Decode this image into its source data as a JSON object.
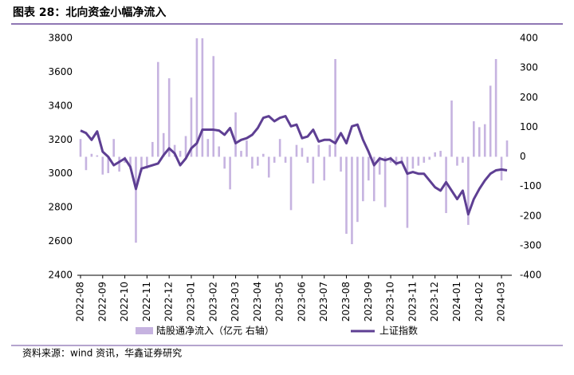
{
  "chart_data": {
    "type": "bar_line",
    "title": "图表 28：北向资金小幅净流入",
    "source": "资料来源：wind 资讯，华鑫证券研究",
    "categories": [
      "2022-08",
      null,
      null,
      null,
      "2022-09",
      null,
      null,
      null,
      "2022-10",
      null,
      null,
      null,
      "2022-11",
      null,
      null,
      null,
      "2022-12",
      null,
      null,
      null,
      "2023-01",
      null,
      null,
      null,
      "2023-02",
      null,
      null,
      null,
      "2023-03",
      null,
      null,
      null,
      "2023-04",
      null,
      null,
      null,
      "2023-05",
      null,
      null,
      null,
      "2023-06",
      null,
      null,
      null,
      "2023-07",
      null,
      null,
      null,
      "2023-08",
      null,
      null,
      null,
      "2023-09",
      null,
      null,
      null,
      "2023-10",
      null,
      null,
      null,
      "2023-11",
      null,
      null,
      null,
      "2023-12",
      null,
      null,
      null,
      "2024-01",
      null,
      null,
      null,
      "2024-02",
      null,
      null,
      null,
      "2024-03",
      null
    ],
    "series": [
      {
        "name": "陆股通净流入（亿元 右轴）",
        "type": "bar",
        "axis": "y2",
        "color": "#c6b3e0",
        "values": [
          60,
          -45,
          10,
          5,
          -60,
          -55,
          60,
          -50,
          -20,
          -40,
          -290,
          -50,
          -40,
          50,
          320,
          80,
          265,
          40,
          20,
          70,
          200,
          400,
          400,
          60,
          340,
          35,
          -40,
          -110,
          150,
          20,
          55,
          -40,
          -30,
          10,
          -70,
          -20,
          60,
          -20,
          -180,
          40,
          30,
          -20,
          -90,
          40,
          -80,
          40,
          330,
          -50,
          -260,
          -295,
          -220,
          -150,
          -80,
          -150,
          -60,
          -170,
          -20,
          -30,
          -20,
          -240,
          -40,
          -30,
          -20,
          -10,
          15,
          20,
          -190,
          190,
          -30,
          -20,
          -230,
          120,
          100,
          110,
          240,
          330,
          -80,
          55
        ]
      },
      {
        "name": "上证指数",
        "type": "line",
        "color": "#5e3f93",
        "values": [
          3255,
          3240,
          3200,
          3250,
          3130,
          3100,
          3050,
          3070,
          3090,
          3040,
          2910,
          3030,
          3040,
          3050,
          3060,
          3110,
          3150,
          3120,
          3050,
          3090,
          3150,
          3180,
          3260,
          3260,
          3260,
          3255,
          3230,
          3270,
          3180,
          3200,
          3210,
          3230,
          3270,
          3330,
          3340,
          3310,
          3330,
          3340,
          3280,
          3290,
          3210,
          3220,
          3260,
          3190,
          3200,
          3200,
          3180,
          3240,
          3180,
          3280,
          3290,
          3200,
          3130,
          3050,
          3090,
          3080,
          3090,
          3060,
          3070,
          3000,
          3010,
          3000,
          3000,
          2960,
          2920,
          2900,
          2950,
          2900,
          2850,
          2900,
          2760,
          2850,
          2910,
          2960,
          3000,
          3020,
          3025,
          3020
        ]
      }
    ],
    "ylim": [
      2400,
      3800
    ],
    "yticks": [
      2400,
      2600,
      2800,
      3000,
      3200,
      3400,
      3600,
      3800
    ],
    "y2lim": [
      -400,
      400
    ],
    "y2ticks": [
      -400,
      -300,
      -200,
      -100,
      0,
      100,
      200,
      300,
      400
    ]
  }
}
